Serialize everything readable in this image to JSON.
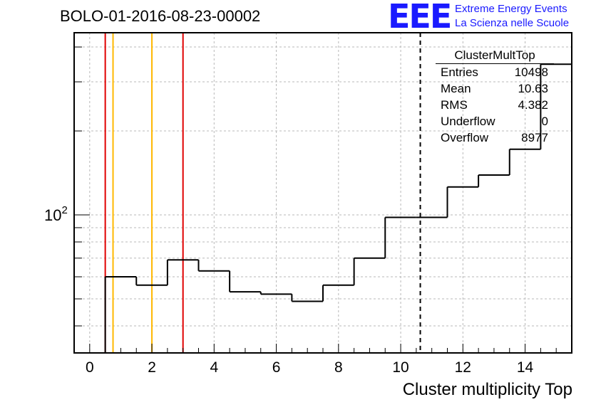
{
  "title": "BOLO-01-2016-08-23-00002",
  "logo": {
    "mark": "EEE",
    "line1": "Extreme Energy Events",
    "line2": "La Scienza nelle Scuole",
    "color": "#1a1aff"
  },
  "stats": {
    "name": "ClusterMultTop",
    "rows": [
      {
        "label": "Entries",
        "value": "10498"
      },
      {
        "label": "Mean",
        "value": "10.63"
      },
      {
        "label": "RMS",
        "value": "4.382"
      },
      {
        "label": "Underflow",
        "value": "0"
      },
      {
        "label": "Overflow",
        "value": "8977"
      }
    ]
  },
  "chart_data": {
    "type": "histogram",
    "xlabel": "Cluster multiplicity Top",
    "ylabel": "",
    "x_ticks": [
      "0",
      "2",
      "4",
      "6",
      "8",
      "10",
      "12",
      "14"
    ],
    "y_tick_label": {
      "base": "10",
      "exponent": "2",
      "value": 100
    },
    "y_scale": "log",
    "xlim": [
      -0.5,
      15.5
    ],
    "ylim": [
      32,
      450
    ],
    "grid": true,
    "bin_edges": [
      0.5,
      1.5,
      2.5,
      3.5,
      4.5,
      5.5,
      6.5,
      7.5,
      8.5,
      9.5,
      10.5,
      11.5,
      12.5,
      13.5,
      14.5,
      15.5
    ],
    "counts": [
      60,
      56,
      69,
      63,
      53,
      52,
      49,
      56,
      70,
      98,
      98,
      126,
      139,
      172,
      347
    ],
    "markers": [
      {
        "x": 0.5,
        "color": "#e00000",
        "style": "solid"
      },
      {
        "x": 0.75,
        "color": "#ffb800",
        "style": "solid"
      },
      {
        "x": 2.0,
        "color": "#ffb800",
        "style": "solid"
      },
      {
        "x": 3.0,
        "color": "#e00000",
        "style": "solid"
      },
      {
        "x": 10.63,
        "color": "#000000",
        "style": "dashed"
      }
    ]
  }
}
